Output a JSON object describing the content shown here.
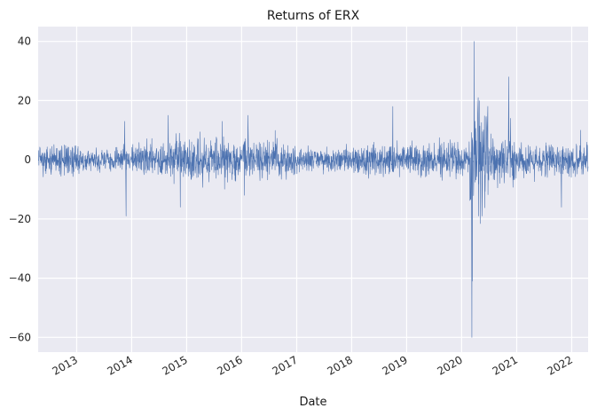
{
  "chart_data": {
    "type": "line",
    "title": "Returns of ERX",
    "xlabel": "Date",
    "ylabel": "",
    "x_range": [
      "2012-04-20",
      "2022-04-20"
    ],
    "ylim": [
      -65,
      45
    ],
    "yticks": [
      {
        "value": 40,
        "label": "40"
      },
      {
        "value": 20,
        "label": "20"
      },
      {
        "value": 0,
        "label": "0"
      },
      {
        "value": -20,
        "label": "−20"
      },
      {
        "value": -40,
        "label": "−40"
      },
      {
        "value": -60,
        "label": "−60"
      }
    ],
    "xticks": [
      {
        "date": "2013-01-01",
        "label": "2013"
      },
      {
        "date": "2014-01-01",
        "label": "2014"
      },
      {
        "date": "2015-01-01",
        "label": "2015"
      },
      {
        "date": "2016-01-01",
        "label": "2016"
      },
      {
        "date": "2017-01-01",
        "label": "2017"
      },
      {
        "date": "2018-01-01",
        "label": "2018"
      },
      {
        "date": "2019-01-01",
        "label": "2019"
      },
      {
        "date": "2020-01-01",
        "label": "2020"
      },
      {
        "date": "2021-01-01",
        "label": "2021"
      },
      {
        "date": "2022-01-01",
        "label": "2022"
      }
    ],
    "grid": true,
    "series": [
      {
        "color": "#4c72b0",
        "line_width": 0.6,
        "points_note_free": true,
        "key_points": [
          {
            "date": "2012-04-20",
            "value": 0
          },
          {
            "date": "2012-05-20",
            "value": -12
          },
          {
            "date": "2012-07-01",
            "value": 5
          },
          {
            "date": "2013-11-15",
            "value": 13
          },
          {
            "date": "2013-11-25",
            "value": -19
          },
          {
            "date": "2014-09-01",
            "value": 15
          },
          {
            "date": "2014-11-20",
            "value": -16
          },
          {
            "date": "2015-08-25",
            "value": 13
          },
          {
            "date": "2016-01-20",
            "value": -12
          },
          {
            "date": "2016-02-12",
            "value": 15
          },
          {
            "date": "2018-10-01",
            "value": 18
          },
          {
            "date": "2020-03-09",
            "value": -60
          },
          {
            "date": "2020-03-12",
            "value": -41
          },
          {
            "date": "2020-03-24",
            "value": 40
          },
          {
            "date": "2020-04-20",
            "value": 21
          },
          {
            "date": "2020-05-15",
            "value": -19
          },
          {
            "date": "2020-11-09",
            "value": 28
          },
          {
            "date": "2020-11-20",
            "value": 14
          },
          {
            "date": "2021-10-25",
            "value": -16
          },
          {
            "date": "2022-03-01",
            "value": 10
          }
        ]
      }
    ]
  }
}
